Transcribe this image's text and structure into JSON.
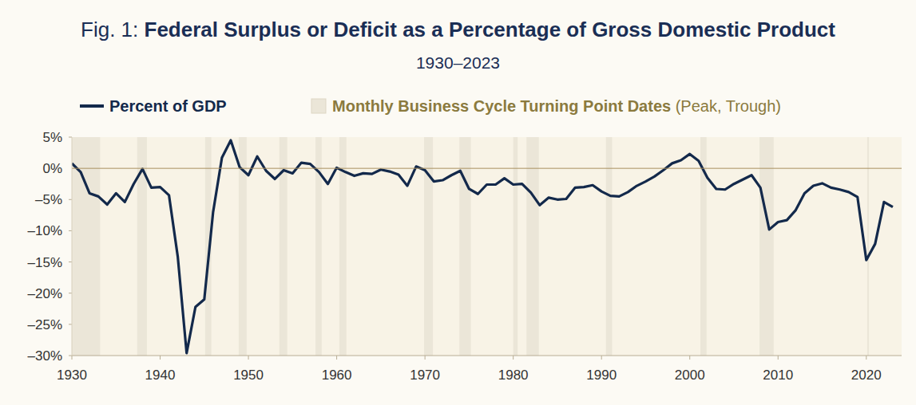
{
  "chart_data": {
    "type": "line",
    "title_prefix": "Fig. 1:",
    "title": "Federal Surplus or Deficit as a Percentage of Gross Domestic Product",
    "subtitle": "1930–2023",
    "recession_legend": "Monthly Business Cycle Turning Point Dates",
    "recession_legend_note": "(Peak, Trough)",
    "recession_color": "#ebe6d8",
    "recessions": [
      [
        1929.6,
        1933.2
      ],
      [
        1937.4,
        1938.5
      ],
      [
        1945.1,
        1945.8
      ],
      [
        1948.9,
        1949.8
      ],
      [
        1953.5,
        1954.4
      ],
      [
        1957.6,
        1958.3
      ],
      [
        1960.3,
        1961.1
      ],
      [
        1969.9,
        1970.9
      ],
      [
        1973.9,
        1975.2
      ],
      [
        1980.0,
        1980.5
      ],
      [
        1981.5,
        1982.9
      ],
      [
        1990.5,
        1991.2
      ],
      [
        2001.2,
        2001.9
      ],
      [
        2007.9,
        2009.5
      ],
      [
        2020.1,
        2020.3
      ]
    ],
    "x": [
      1930,
      1931,
      1932,
      1933,
      1934,
      1935,
      1936,
      1937,
      1938,
      1939,
      1940,
      1941,
      1942,
      1943,
      1944,
      1945,
      1946,
      1947,
      1948,
      1949,
      1950,
      1951,
      1952,
      1953,
      1954,
      1955,
      1956,
      1957,
      1958,
      1959,
      1960,
      1961,
      1962,
      1963,
      1964,
      1965,
      1966,
      1967,
      1968,
      1969,
      1970,
      1971,
      1972,
      1973,
      1974,
      1975,
      1976,
      1977,
      1978,
      1979,
      1980,
      1981,
      1982,
      1983,
      1984,
      1985,
      1986,
      1987,
      1988,
      1989,
      1990,
      1991,
      1992,
      1993,
      1994,
      1995,
      1996,
      1997,
      1998,
      1999,
      2000,
      2001,
      2002,
      2003,
      2004,
      2005,
      2006,
      2007,
      2008,
      2009,
      2010,
      2011,
      2012,
      2013,
      2014,
      2015,
      2016,
      2017,
      2018,
      2019,
      2020,
      2021,
      2022,
      2023
    ],
    "series": [
      {
        "name": "Percent of GDP",
        "color": "#13294b",
        "values": [
          0.8,
          -0.6,
          -4.0,
          -4.5,
          -5.8,
          -4.0,
          -5.4,
          -2.5,
          -0.1,
          -3.1,
          -3.0,
          -4.3,
          -14.2,
          -29.6,
          -22.2,
          -21.0,
          -7.0,
          1.7,
          4.5,
          0.2,
          -1.1,
          1.9,
          -0.4,
          -1.7,
          -0.3,
          -0.8,
          0.9,
          0.7,
          -0.6,
          -2.5,
          0.1,
          -0.6,
          -1.2,
          -0.8,
          -0.9,
          -0.2,
          -0.5,
          -1.0,
          -2.8,
          0.3,
          -0.3,
          -2.1,
          -1.9,
          -1.1,
          -0.4,
          -3.3,
          -4.1,
          -2.6,
          -2.6,
          -1.6,
          -2.6,
          -2.5,
          -3.9,
          -5.9,
          -4.7,
          -5.0,
          -4.9,
          -3.1,
          -3.0,
          -2.7,
          -3.7,
          -4.4,
          -4.5,
          -3.8,
          -2.8,
          -2.1,
          -1.3,
          -0.3,
          0.8,
          1.3,
          2.3,
          1.2,
          -1.5,
          -3.3,
          -3.4,
          -2.5,
          -1.8,
          -1.1,
          -3.1,
          -9.8,
          -8.6,
          -8.3,
          -6.7,
          -4.0,
          -2.8,
          -2.4,
          -3.1,
          -3.4,
          -3.8,
          -4.6,
          -14.7,
          -12.1,
          -5.4,
          -6.2
        ]
      }
    ],
    "xlim": [
      1930,
      2024
    ],
    "xticks": [
      1930,
      1940,
      1950,
      1960,
      1970,
      1980,
      1990,
      2000,
      2010,
      2020
    ],
    "ylim": [
      -30,
      5
    ],
    "yticks": [
      {
        "value": -30,
        "label": "–30%"
      },
      {
        "value": -25,
        "label": "–25%"
      },
      {
        "value": -20,
        "label": "–20%"
      },
      {
        "value": -15,
        "label": "–15%"
      },
      {
        "value": -10,
        "label": "–10%"
      },
      {
        "value": -5,
        "label": "–5%"
      },
      {
        "value": 0,
        "label": "0%"
      },
      {
        "value": 5,
        "label": "5%"
      }
    ],
    "grid": false
  }
}
